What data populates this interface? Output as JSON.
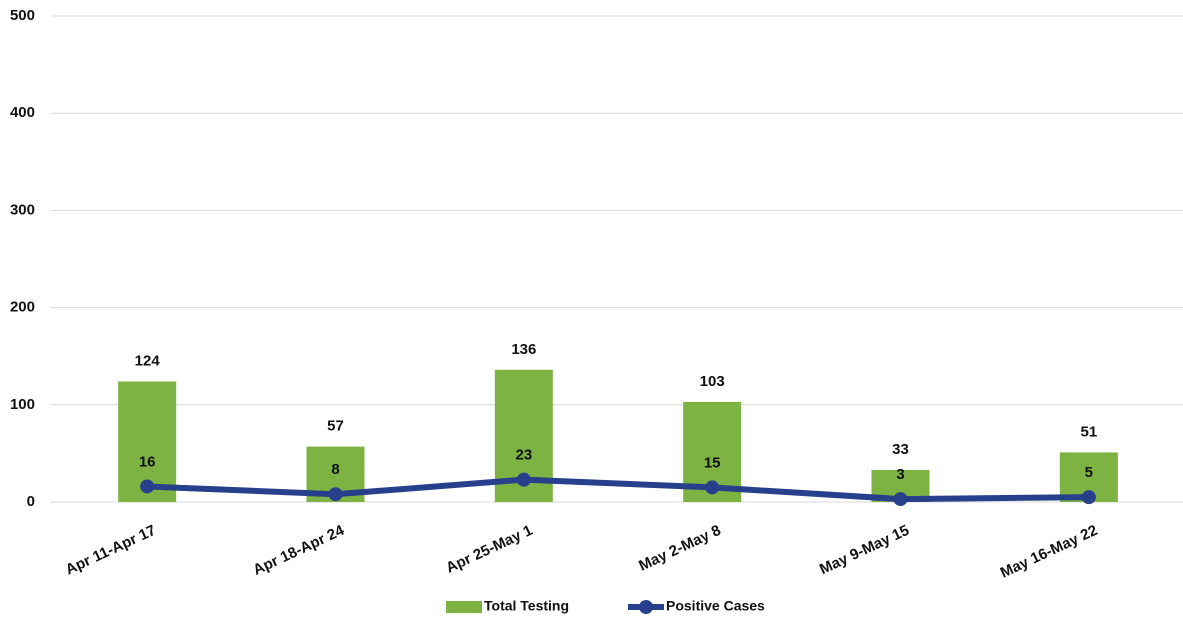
{
  "chart_data": {
    "type": "bar_line",
    "categories": [
      "Apr 11-Apr 17",
      "Apr 18-Apr 24",
      "Apr 25-May 1",
      "May 2-May 8",
      "May 9-May 15",
      "May 16-May 22"
    ],
    "series": [
      {
        "name": "Total Testing",
        "type": "bar",
        "color": "#7cb342",
        "values": [
          124,
          57,
          136,
          103,
          33,
          51
        ]
      },
      {
        "name": "Positive Cases",
        "type": "line",
        "color": "#27408b",
        "values": [
          16,
          8,
          23,
          15,
          3,
          5
        ]
      }
    ],
    "ylim": [
      0,
      500
    ],
    "yticks": [
      0,
      100,
      200,
      300,
      400,
      500
    ],
    "grid": true,
    "legend": "bottom"
  }
}
